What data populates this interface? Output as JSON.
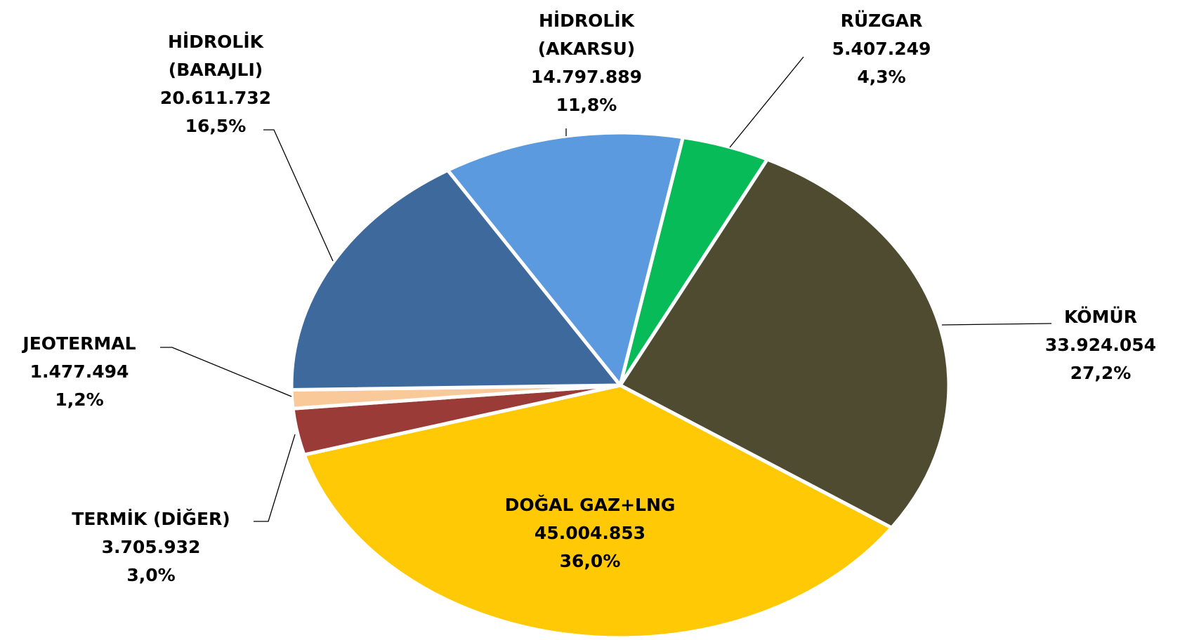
{
  "chart_data": {
    "type": "pie",
    "categories": [
      "RÜZGAR",
      "KÖMÜR",
      "DOĞAL GAZ+LNG",
      "TERMİK (DİĞER)",
      "JEOTERMAL",
      "HİDROLİK\n(BARAJLI)",
      "HİDROLİK\n(AKARSU)"
    ],
    "values": [
      5407249,
      33924054,
      45004853,
      3705932,
      1477494,
      20611732,
      14797889
    ],
    "value_labels": [
      "5.407.249",
      "33.924.054",
      "45.004.853",
      "3.705.932",
      "1.477.494",
      "20.611.732",
      "14.797.889"
    ],
    "percent_labels": [
      "4,3%",
      "27,2%",
      "36,0%",
      "3,0%",
      "1,2%",
      "16,5%",
      "11,8%"
    ],
    "colors": [
      "#07bb58",
      "#4f4b31",
      "#ffc906",
      "#9b3b38",
      "#f9c999",
      "#3e699c",
      "#5b9adf"
    ]
  }
}
